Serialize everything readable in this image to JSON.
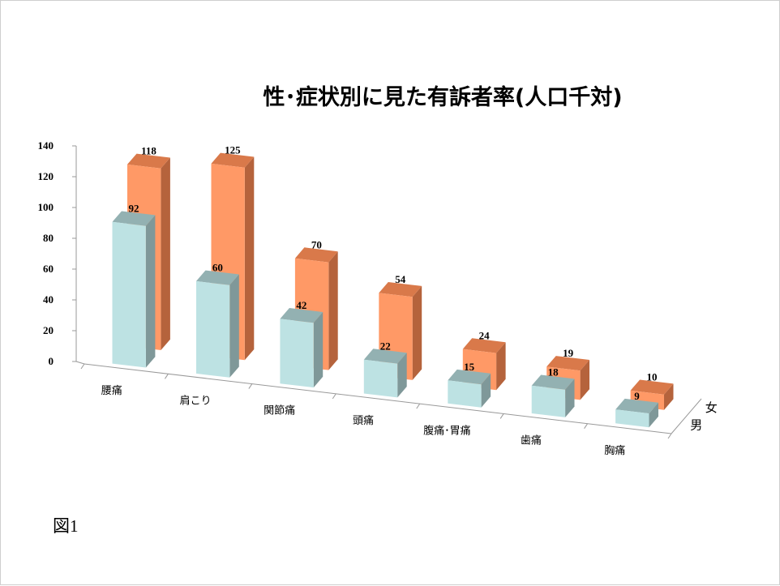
{
  "figure_label": "図1",
  "chart_data": {
    "type": "bar",
    "title": "性･症状別に見た有訴者率(人口千対)",
    "categories": [
      "腰痛",
      "肩こり",
      "関節痛",
      "頭痛",
      "腹痛･胃痛",
      "歯痛",
      "胸痛"
    ],
    "series": [
      {
        "name": "男",
        "values": [
          92,
          60,
          42,
          22,
          15,
          18,
          9
        ]
      },
      {
        "name": "女",
        "values": [
          118,
          125,
          70,
          54,
          24,
          19,
          10
        ]
      }
    ],
    "ylim": [
      0,
      140
    ],
    "yticks": [
      0,
      20,
      40,
      60,
      80,
      100,
      120,
      140
    ],
    "grid": false,
    "legend": "none",
    "colors": {
      "男": {
        "front": "#bde2e3",
        "side": "#7f9899",
        "top": "#93b1b2"
      },
      "女": {
        "front": "#ff9966",
        "side": "#b5633c",
        "top": "#d9794a"
      }
    }
  }
}
